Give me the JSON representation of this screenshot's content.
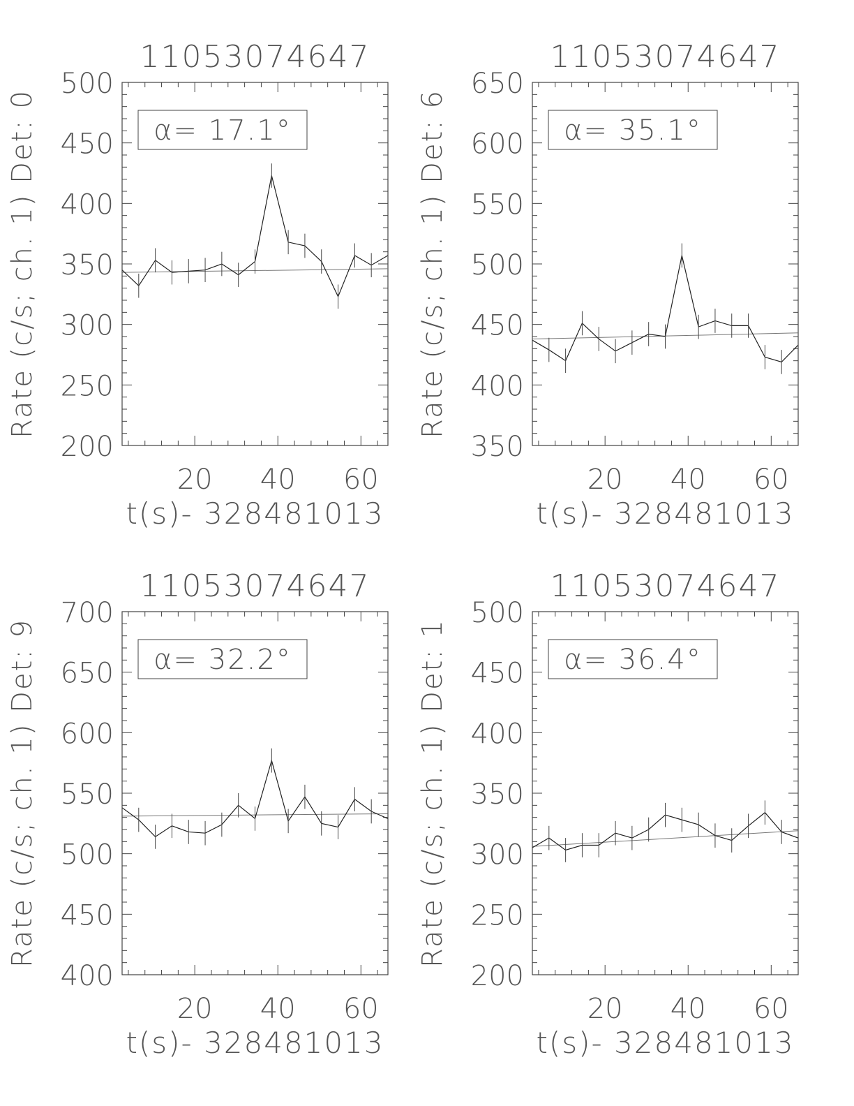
{
  "chart_data": [
    {
      "type": "line",
      "title": "11053074647",
      "xlabel": "t(s)- 328481013",
      "ylabel": "Rate (c/s; ch. 1) Det: 0",
      "annotation": "α=  17.1°",
      "xlim": [
        2.5,
        66.5
      ],
      "ylim": [
        200,
        500
      ],
      "xticks": [
        20,
        40,
        60
      ],
      "yticks": [
        200,
        250,
        300,
        350,
        400,
        450,
        500
      ],
      "x": [
        2.5,
        6.5,
        10.5,
        14.5,
        18.5,
        22.5,
        26.5,
        30.5,
        34.5,
        38.5,
        42.5,
        46.5,
        50.5,
        54.5,
        58.5,
        62.5,
        66.5
      ],
      "y": [
        345,
        332,
        353,
        343,
        344,
        345,
        350,
        341,
        352,
        423,
        368,
        365,
        352,
        323,
        357,
        349,
        357
      ],
      "yerr": 10,
      "fit": [
        343,
        346
      ]
    },
    {
      "type": "line",
      "title": "11053074647",
      "xlabel": "t(s)- 328481013",
      "ylabel": "Rate (c/s; ch. 1) Det: 6",
      "annotation": "α=  35.1°",
      "xlim": [
        2.5,
        66.5
      ],
      "ylim": [
        350,
        650
      ],
      "xticks": [
        20,
        40,
        60
      ],
      "yticks": [
        350,
        400,
        450,
        500,
        550,
        600,
        650
      ],
      "x": [
        2.5,
        6.5,
        10.5,
        14.5,
        18.5,
        22.5,
        26.5,
        30.5,
        34.5,
        38.5,
        42.5,
        46.5,
        50.5,
        54.5,
        58.5,
        62.5,
        66.5
      ],
      "y": [
        437,
        429,
        420,
        451,
        438,
        428,
        435,
        442,
        440,
        507,
        448,
        453,
        449,
        449,
        423,
        419,
        433
      ],
      "yerr": 10,
      "fit": [
        438,
        443
      ]
    },
    {
      "type": "line",
      "title": "11053074647",
      "xlabel": "t(s)- 328481013",
      "ylabel": "Rate (c/s; ch. 1) Det: 9",
      "annotation": "α=  32.2°",
      "xlim": [
        2.5,
        66.5
      ],
      "ylim": [
        400,
        700
      ],
      "xticks": [
        20,
        40,
        60
      ],
      "yticks": [
        400,
        450,
        500,
        550,
        600,
        650,
        700
      ],
      "x": [
        2.5,
        6.5,
        10.5,
        14.5,
        18.5,
        22.5,
        26.5,
        30.5,
        34.5,
        38.5,
        42.5,
        46.5,
        50.5,
        54.5,
        58.5,
        62.5,
        66.5
      ],
      "y": [
        538,
        528,
        514,
        523,
        518,
        517,
        524,
        540,
        529,
        577,
        527,
        547,
        525,
        522,
        545,
        535,
        529
      ],
      "yerr": 10,
      "fit": [
        531,
        533
      ]
    },
    {
      "type": "line",
      "title": "11053074647",
      "xlabel": "t(s)- 328481013",
      "ylabel": "Rate (c/s; ch. 1) Det: 1",
      "annotation": "α=  36.4°",
      "xlim": [
        2.5,
        66.5
      ],
      "ylim": [
        200,
        500
      ],
      "xticks": [
        20,
        40,
        60
      ],
      "yticks": [
        200,
        250,
        300,
        350,
        400,
        450,
        500
      ],
      "x": [
        2.5,
        6.5,
        10.5,
        14.5,
        18.5,
        22.5,
        26.5,
        30.5,
        34.5,
        38.5,
        42.5,
        46.5,
        50.5,
        54.5,
        58.5,
        62.5,
        66.5
      ],
      "y": [
        305,
        313,
        303,
        307,
        307,
        317,
        313,
        320,
        332,
        328,
        324,
        315,
        311,
        323,
        334,
        318,
        313
      ],
      "yerr": 10,
      "fit": [
        306,
        319
      ]
    }
  ]
}
